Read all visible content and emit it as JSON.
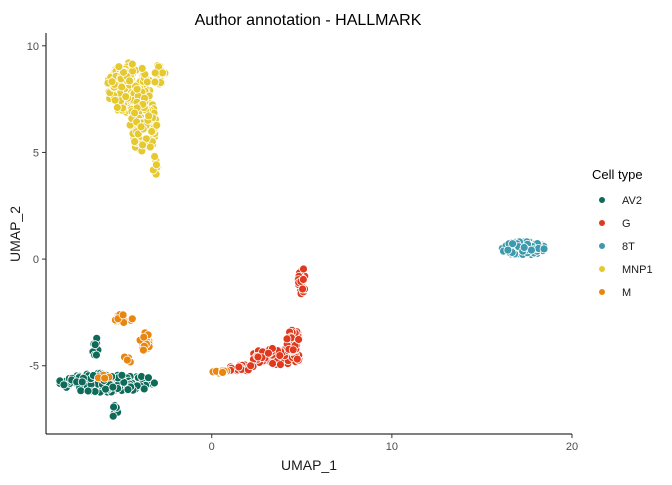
{
  "chart_data": {
    "type": "scatter",
    "title": "Author annotation - HALLMARK",
    "xlabel": "UMAP_1",
    "ylabel": "UMAP_2",
    "xlim": [
      -9.2,
      20.0
    ],
    "ylim": [
      -8.2,
      10.6
    ],
    "x_ticks": [
      0,
      10,
      20
    ],
    "y_ticks": [
      -5,
      0,
      5,
      10
    ],
    "grid": false,
    "legend_position": "right",
    "legend_title": "Cell type",
    "marker_stroke": "#ffffff",
    "series": [
      {
        "name": "AV2",
        "color": "#0e6b5a",
        "clusters": [
          {
            "shape": "ellipse",
            "cx": -5.8,
            "cy": -5.8,
            "rx": 2.7,
            "ry": 0.45,
            "n": 180,
            "seed": 11
          },
          {
            "shape": "ellipse",
            "cx": -6.4,
            "cy": -4.3,
            "rx": 0.25,
            "ry": 0.6,
            "n": 8,
            "seed": 12
          },
          {
            "shape": "ellipse",
            "cx": -5.4,
            "cy": -7.1,
            "rx": 0.25,
            "ry": 0.35,
            "n": 7,
            "seed": 13
          }
        ]
      },
      {
        "name": "G",
        "color": "#e0391e",
        "clusters": [
          {
            "shape": "ellipse",
            "cx": 3.6,
            "cy": -4.6,
            "rx": 1.4,
            "ry": 0.45,
            "n": 80,
            "seed": 21
          },
          {
            "shape": "ellipse",
            "cx": 4.5,
            "cy": -3.8,
            "rx": 0.4,
            "ry": 0.55,
            "n": 30,
            "seed": 22
          },
          {
            "shape": "ellipse",
            "cx": 1.6,
            "cy": -5.1,
            "rx": 0.9,
            "ry": 0.15,
            "n": 20,
            "seed": 23
          },
          {
            "shape": "ellipse",
            "cx": 5.0,
            "cy": -1.0,
            "rx": 0.2,
            "ry": 0.65,
            "n": 22,
            "seed": 24
          }
        ]
      },
      {
        "name": "8T",
        "color": "#3d9aad",
        "clusters": [
          {
            "shape": "ellipse",
            "cx": 17.3,
            "cy": 0.5,
            "rx": 1.2,
            "ry": 0.32,
            "n": 110,
            "seed": 31
          }
        ]
      },
      {
        "name": "MNP1",
        "color": "#e6c92e",
        "clusters": [
          {
            "shape": "ellipse",
            "cx": -4.6,
            "cy": 8.0,
            "rx": 1.2,
            "ry": 1.2,
            "n": 140,
            "seed": 41
          },
          {
            "shape": "ellipse",
            "cx": -3.8,
            "cy": 6.3,
            "rx": 0.75,
            "ry": 1.3,
            "n": 90,
            "seed": 42
          },
          {
            "shape": "ellipse",
            "cx": -2.9,
            "cy": 8.6,
            "rx": 0.35,
            "ry": 0.5,
            "n": 20,
            "seed": 43
          },
          {
            "shape": "ellipse",
            "cx": -3.1,
            "cy": 4.4,
            "rx": 0.2,
            "ry": 0.45,
            "n": 8,
            "seed": 44
          }
        ]
      },
      {
        "name": "M",
        "color": "#e9860f",
        "clusters": [
          {
            "shape": "ellipse",
            "cx": -4.9,
            "cy": -2.8,
            "rx": 0.55,
            "ry": 0.22,
            "n": 18,
            "seed": 51
          },
          {
            "shape": "ellipse",
            "cx": -3.7,
            "cy": -3.9,
            "rx": 0.3,
            "ry": 0.45,
            "n": 22,
            "seed": 52
          },
          {
            "shape": "ellipse",
            "cx": 0.5,
            "cy": -5.3,
            "rx": 0.55,
            "ry": 0.1,
            "n": 12,
            "seed": 53
          },
          {
            "shape": "ellipse",
            "cx": -4.6,
            "cy": -4.7,
            "rx": 0.35,
            "ry": 0.15,
            "n": 4,
            "seed": 54
          },
          {
            "shape": "ellipse",
            "cx": -6.0,
            "cy": -5.6,
            "rx": 0.35,
            "ry": 0.3,
            "n": 4,
            "seed": 55
          }
        ]
      }
    ]
  }
}
